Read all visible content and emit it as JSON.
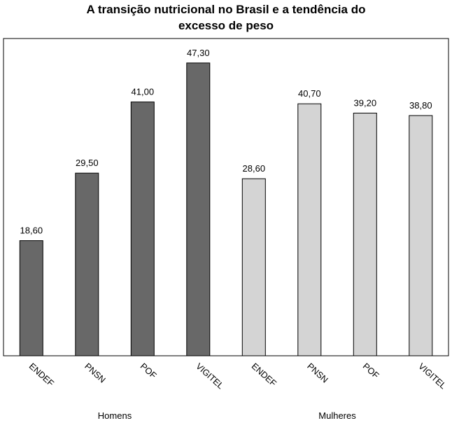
{
  "chart_data": {
    "type": "bar",
    "title_lines": [
      "A transição nutricional no Brasil e a tendência do",
      "excesso de peso"
    ],
    "categories": [
      "ENDEF",
      "PNSN",
      "POF",
      "VIGITEL",
      "ENDEF",
      "PNSN",
      "POF",
      "VIGITEL"
    ],
    "values": [
      18.6,
      29.5,
      41.0,
      47.3,
      28.6,
      40.7,
      39.2,
      38.8
    ],
    "value_labels": [
      "18,60",
      "29,50",
      "41,00",
      "47,30",
      "28,60",
      "40,70",
      "39,20",
      "38,80"
    ],
    "groups": [
      {
        "name": "Homens",
        "start": 0,
        "count": 4,
        "color": "#686868"
      },
      {
        "name": "Mulheres",
        "start": 4,
        "count": 4,
        "color": "#d4d4d4"
      }
    ],
    "ylim": [
      0,
      50
    ],
    "grid": false,
    "legend": "none"
  }
}
